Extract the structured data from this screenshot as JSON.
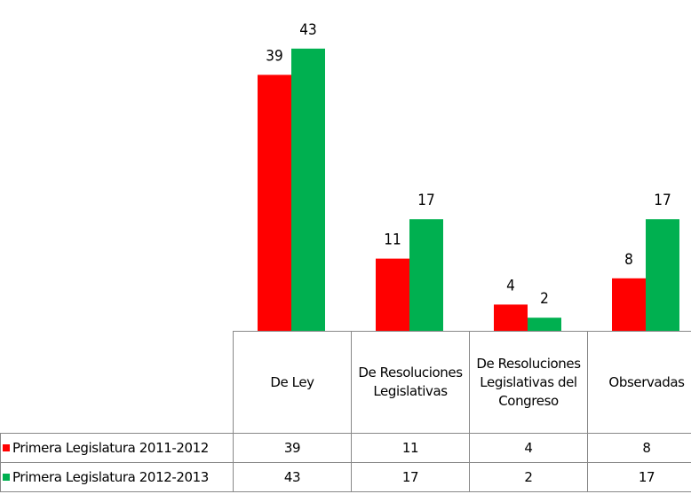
{
  "chart_data": {
    "type": "bar",
    "categories": [
      "De Ley",
      "De Resoluciones Legislativas",
      "De Resoluciones Legislativas del Congreso",
      "Observadas"
    ],
    "series": [
      {
        "name": "Primera Legislatura  2011-2012",
        "color": "#ff0000",
        "values": [
          39,
          11,
          4,
          8
        ]
      },
      {
        "name": "Primera Legislatura  2012-2013",
        "color": "#00b050",
        "values": [
          43,
          17,
          2,
          17
        ]
      }
    ]
  }
}
